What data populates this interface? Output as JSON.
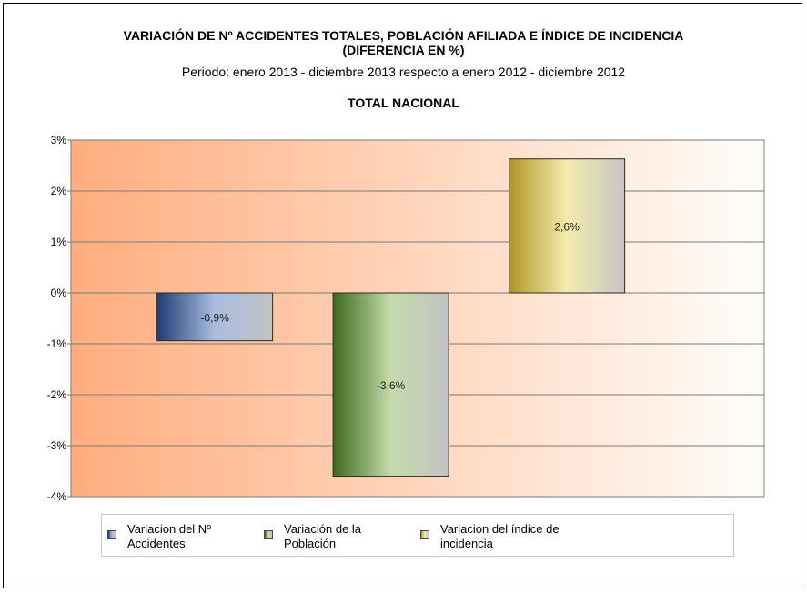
{
  "header": {
    "title_line1": "VARIACIÓN DE Nº ACCIDENTES TOTALES, POBLACIÓN AFILIADA E ÍNDICE DE INCIDENCIA",
    "title_line2": "(DIFERENCIA EN %)",
    "period": "Periodo:   enero 2013 - diciembre 2013 respecto a  enero 2012 - diciembre 2012",
    "scope": "TOTAL NACIONAL"
  },
  "chart_data": {
    "type": "bar",
    "ylim": [
      -4,
      3
    ],
    "yticks": [
      3,
      2,
      1,
      0,
      -1,
      -2,
      -3,
      -4
    ],
    "ytick_labels": [
      "3%",
      "2%",
      "1%",
      "0%",
      "-1%",
      "-2%",
      "-3%",
      "-4%"
    ],
    "grid": true,
    "legend_position": "bottom",
    "series": [
      {
        "name_line1": "Variacion del Nº",
        "name_line2": "Accidentes",
        "value": -0.94,
        "label": "-0,9%",
        "colors": {
          "dark": "#1f3d73",
          "mid": "#a9bde0",
          "light": "#c2c2c2"
        }
      },
      {
        "name_line1": "Variación de la",
        "name_line2": "Población",
        "value": -3.6,
        "label": "-3,6%",
        "colors": {
          "dark": "#3d6a1e",
          "mid": "#c5dbaa",
          "light": "#c2c2c2"
        }
      },
      {
        "name_line1": "Variacion del índice de",
        "name_line2": "incidencia",
        "value": 2.63,
        "label": "2,6%",
        "colors": {
          "dark": "#b0962a",
          "mid": "#f4ecac",
          "light": "#c6c6c6"
        }
      }
    ],
    "background_colors": {
      "left": "#ffad7e",
      "right": "#fffdfa"
    }
  }
}
